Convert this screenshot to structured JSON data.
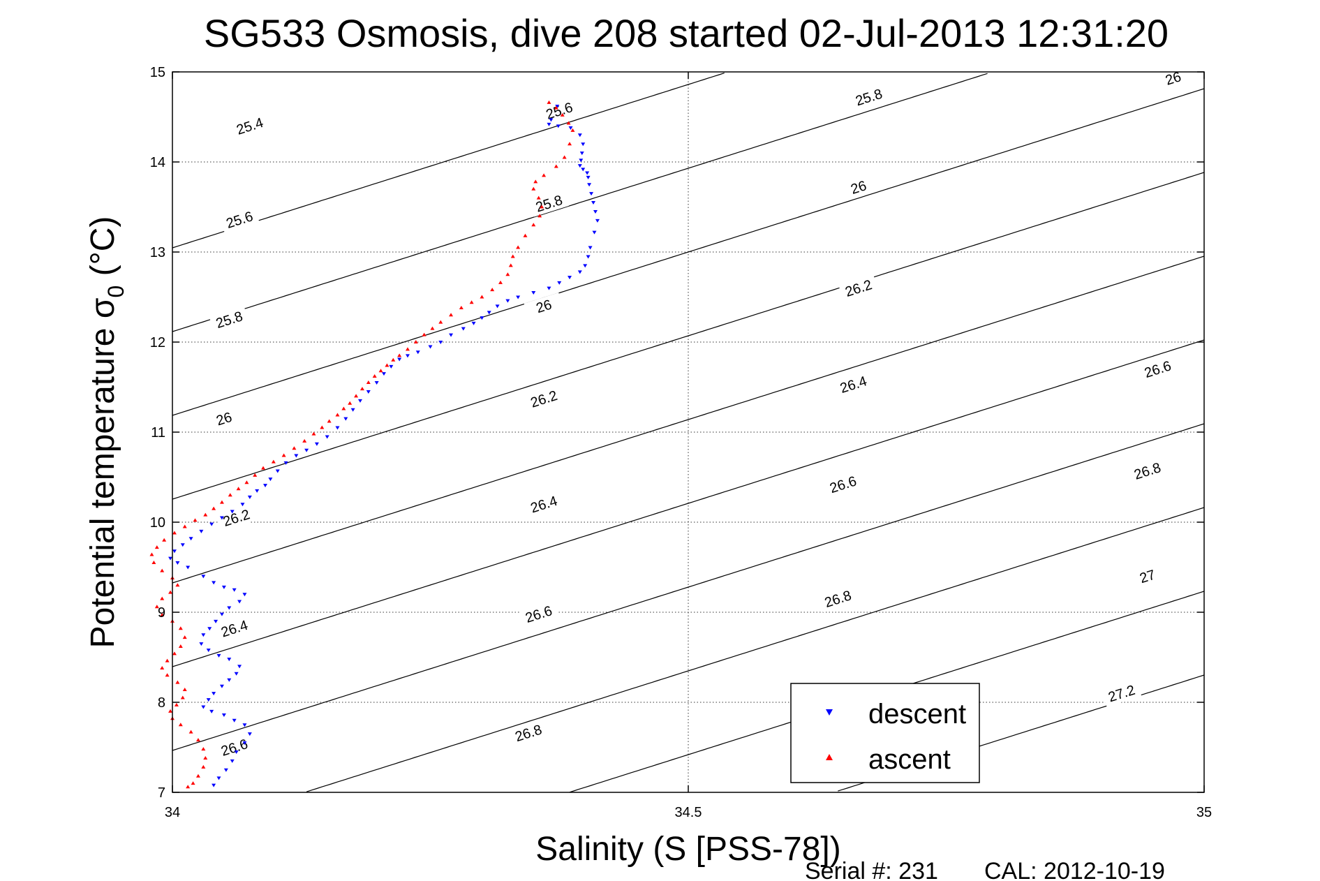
{
  "chart_data": {
    "type": "scatter",
    "title": "SG533 Osmosis, dive 208 started 02-Jul-2013 12:31:20",
    "xlabel": "Salinity (S [PSS-78])",
    "ylabel_main": "Potential temperature σ",
    "ylabel_sub": "0",
    "ylabel_unit": " (°C)",
    "xlim": [
      34,
      35
    ],
    "ylim": [
      7,
      15
    ],
    "xticks": [
      34,
      34.5,
      35
    ],
    "xtick_labels": [
      "34",
      "34.5",
      "35"
    ],
    "yticks": [
      7,
      8,
      9,
      10,
      11,
      12,
      13,
      14,
      15
    ],
    "ytick_labels": [
      "7",
      "8",
      "9",
      "10",
      "11",
      "12",
      "13",
      "14",
      "15"
    ],
    "grid": true,
    "legend_position": "bottom-right",
    "density_contours": [
      25.4,
      25.6,
      25.8,
      26.0,
      26.2,
      26.4,
      26.6,
      26.8,
      27.0,
      27.2
    ],
    "contour_labels": [
      {
        "text": "25.4",
        "s": 34.075,
        "t": 14.4
      },
      {
        "text": "25.6",
        "s": 34.065,
        "t": 13.36
      },
      {
        "text": "25.8",
        "s": 34.055,
        "t": 12.25
      },
      {
        "text": "26",
        "s": 34.05,
        "t": 11.15
      },
      {
        "text": "26.2",
        "s": 34.062,
        "t": 10.05
      },
      {
        "text": "26.4",
        "s": 34.06,
        "t": 8.82
      },
      {
        "text": "26.6",
        "s": 34.06,
        "t": 7.5
      },
      {
        "text": "25.6",
        "s": 34.375,
        "t": 14.57
      },
      {
        "text": "25.8",
        "s": 34.365,
        "t": 13.54
      },
      {
        "text": "26",
        "s": 34.36,
        "t": 12.4
      },
      {
        "text": "26.2",
        "s": 34.36,
        "t": 11.37
      },
      {
        "text": "26.4",
        "s": 34.36,
        "t": 10.2
      },
      {
        "text": "26.6",
        "s": 34.355,
        "t": 8.98
      },
      {
        "text": "26.8",
        "s": 34.345,
        "t": 7.66
      },
      {
        "text": "25.8",
        "s": 34.675,
        "t": 14.72
      },
      {
        "text": "26",
        "s": 34.665,
        "t": 13.72
      },
      {
        "text": "26.2",
        "s": 34.665,
        "t": 12.6
      },
      {
        "text": "26.4",
        "s": 34.66,
        "t": 11.53
      },
      {
        "text": "26.6",
        "s": 34.65,
        "t": 10.42
      },
      {
        "text": "26.8",
        "s": 34.645,
        "t": 9.15
      },
      {
        "text": "26",
        "s": 34.97,
        "t": 14.93
      },
      {
        "text": "26.6",
        "s": 34.955,
        "t": 11.7
      },
      {
        "text": "26.8",
        "s": 34.945,
        "t": 10.57
      },
      {
        "text": "27",
        "s": 34.945,
        "t": 9.4
      },
      {
        "text": "27.2",
        "s": 34.92,
        "t": 8.1
      }
    ],
    "series": [
      {
        "name": "descent",
        "color": "#0000ff",
        "marker": "triangle-down",
        "points": [
          [
            34.373,
            14.62
          ],
          [
            34.367,
            14.47
          ],
          [
            34.365,
            14.42
          ],
          [
            34.374,
            14.4
          ],
          [
            34.386,
            14.38
          ],
          [
            34.395,
            14.3
          ],
          [
            34.398,
            14.2
          ],
          [
            34.397,
            14.1
          ],
          [
            34.396,
            14.02
          ],
          [
            34.395,
            13.96
          ],
          [
            34.398,
            13.92
          ],
          [
            34.402,
            13.88
          ],
          [
            34.403,
            13.83
          ],
          [
            34.404,
            13.75
          ],
          [
            34.406,
            13.65
          ],
          [
            34.408,
            13.55
          ],
          [
            34.41,
            13.45
          ],
          [
            34.412,
            13.35
          ],
          [
            34.409,
            13.22
          ],
          [
            34.405,
            13.05
          ],
          [
            34.403,
            12.95
          ],
          [
            34.4,
            12.85
          ],
          [
            34.395,
            12.78
          ],
          [
            34.385,
            12.72
          ],
          [
            34.375,
            12.66
          ],
          [
            34.365,
            12.6
          ],
          [
            34.35,
            12.55
          ],
          [
            34.335,
            12.5
          ],
          [
            34.325,
            12.46
          ],
          [
            34.315,
            12.4
          ],
          [
            34.307,
            12.33
          ],
          [
            34.3,
            12.27
          ],
          [
            34.292,
            12.21
          ],
          [
            34.282,
            12.15
          ],
          [
            34.27,
            12.08
          ],
          [
            34.26,
            12.0
          ],
          [
            34.25,
            11.95
          ],
          [
            34.238,
            11.89
          ],
          [
            34.228,
            11.85
          ],
          [
            34.22,
            11.81
          ],
          [
            34.212,
            11.73
          ],
          [
            34.205,
            11.65
          ],
          [
            34.198,
            11.55
          ],
          [
            34.19,
            11.45
          ],
          [
            34.182,
            11.35
          ],
          [
            34.175,
            11.25
          ],
          [
            34.168,
            11.15
          ],
          [
            34.16,
            11.05
          ],
          [
            34.15,
            10.95
          ],
          [
            34.14,
            10.87
          ],
          [
            34.13,
            10.8
          ],
          [
            34.12,
            10.74
          ],
          [
            34.11,
            10.66
          ],
          [
            34.102,
            10.57
          ],
          [
            34.095,
            10.48
          ],
          [
            34.09,
            10.41
          ],
          [
            34.082,
            10.35
          ],
          [
            34.075,
            10.28
          ],
          [
            34.068,
            10.2
          ],
          [
            34.058,
            10.12
          ],
          [
            34.048,
            10.05
          ],
          [
            34.038,
            9.98
          ],
          [
            34.028,
            9.9
          ],
          [
            34.018,
            9.82
          ],
          [
            34.01,
            9.75
          ],
          [
            34.002,
            9.68
          ],
          [
            33.998,
            9.6
          ],
          [
            34.005,
            9.55
          ],
          [
            34.015,
            9.5
          ],
          [
            34.03,
            9.4
          ],
          [
            34.04,
            9.33
          ],
          [
            34.05,
            9.28
          ],
          [
            34.06,
            9.25
          ],
          [
            34.07,
            9.2
          ],
          [
            34.065,
            9.12
          ],
          [
            34.055,
            9.05
          ],
          [
            34.048,
            8.98
          ],
          [
            34.042,
            8.9
          ],
          [
            34.036,
            8.82
          ],
          [
            34.03,
            8.75
          ],
          [
            34.028,
            8.65
          ],
          [
            34.035,
            8.58
          ],
          [
            34.045,
            8.52
          ],
          [
            34.055,
            8.48
          ],
          [
            34.065,
            8.4
          ],
          [
            34.062,
            8.32
          ],
          [
            34.055,
            8.25
          ],
          [
            34.048,
            8.18
          ],
          [
            34.04,
            8.1
          ],
          [
            34.035,
            8.03
          ],
          [
            34.03,
            7.95
          ],
          [
            34.038,
            7.9
          ],
          [
            34.05,
            7.86
          ],
          [
            34.06,
            7.8
          ],
          [
            34.07,
            7.75
          ],
          [
            34.075,
            7.65
          ],
          [
            34.07,
            7.55
          ],
          [
            34.062,
            7.45
          ],
          [
            34.058,
            7.35
          ],
          [
            34.052,
            7.25
          ],
          [
            34.045,
            7.16
          ],
          [
            34.04,
            7.08
          ]
        ]
      },
      {
        "name": "ascent",
        "color": "#ff0000",
        "marker": "triangle-up",
        "points": [
          [
            34.365,
            14.66
          ],
          [
            34.372,
            14.6
          ],
          [
            34.378,
            14.52
          ],
          [
            34.384,
            14.43
          ],
          [
            34.388,
            14.35
          ],
          [
            34.385,
            14.2
          ],
          [
            34.38,
            14.05
          ],
          [
            34.372,
            13.95
          ],
          [
            34.36,
            13.85
          ],
          [
            34.352,
            13.78
          ],
          [
            34.35,
            13.7
          ],
          [
            34.355,
            13.6
          ],
          [
            34.358,
            13.5
          ],
          [
            34.356,
            13.4
          ],
          [
            34.35,
            13.3
          ],
          [
            34.342,
            13.18
          ],
          [
            34.335,
            13.05
          ],
          [
            34.33,
            12.95
          ],
          [
            34.328,
            12.85
          ],
          [
            34.325,
            12.75
          ],
          [
            34.318,
            12.66
          ],
          [
            34.31,
            12.58
          ],
          [
            34.3,
            12.5
          ],
          [
            34.29,
            12.44
          ],
          [
            34.28,
            12.38
          ],
          [
            34.27,
            12.3
          ],
          [
            34.26,
            12.22
          ],
          [
            34.252,
            12.15
          ],
          [
            34.244,
            12.08
          ],
          [
            34.236,
            12.0
          ],
          [
            34.228,
            11.92
          ],
          [
            34.22,
            11.85
          ],
          [
            34.214,
            11.8
          ],
          [
            34.208,
            11.74
          ],
          [
            34.202,
            11.68
          ],
          [
            34.196,
            11.62
          ],
          [
            34.19,
            11.55
          ],
          [
            34.184,
            11.48
          ],
          [
            34.178,
            11.4
          ],
          [
            34.172,
            11.32
          ],
          [
            34.166,
            11.26
          ],
          [
            34.16,
            11.19
          ],
          [
            34.152,
            11.12
          ],
          [
            34.145,
            11.05
          ],
          [
            34.137,
            10.98
          ],
          [
            34.128,
            10.9
          ],
          [
            34.118,
            10.82
          ],
          [
            34.108,
            10.74
          ],
          [
            34.098,
            10.67
          ],
          [
            34.088,
            10.6
          ],
          [
            34.08,
            10.52
          ],
          [
            34.072,
            10.44
          ],
          [
            34.064,
            10.37
          ],
          [
            34.056,
            10.3
          ],
          [
            34.048,
            10.22
          ],
          [
            34.04,
            10.15
          ],
          [
            34.032,
            10.08
          ],
          [
            34.022,
            10.02
          ],
          [
            34.012,
            9.95
          ],
          [
            34.002,
            9.88
          ],
          [
            33.992,
            9.8
          ],
          [
            33.985,
            9.72
          ],
          [
            33.98,
            9.64
          ],
          [
            33.982,
            9.55
          ],
          [
            33.99,
            9.46
          ],
          [
            34.0,
            9.38
          ],
          [
            34.005,
            9.3
          ],
          [
            33.998,
            9.22
          ],
          [
            33.99,
            9.15
          ],
          [
            33.985,
            9.06
          ],
          [
            33.99,
            8.97
          ],
          [
            34.0,
            8.9
          ],
          [
            34.008,
            8.82
          ],
          [
            34.012,
            8.72
          ],
          [
            34.008,
            8.62
          ],
          [
            34.002,
            8.54
          ],
          [
            33.995,
            8.46
          ],
          [
            33.99,
            8.38
          ],
          [
            33.995,
            8.3
          ],
          [
            34.005,
            8.22
          ],
          [
            34.012,
            8.14
          ],
          [
            34.01,
            8.05
          ],
          [
            34.004,
            7.97
          ],
          [
            33.998,
            7.9
          ],
          [
            34.0,
            7.82
          ],
          [
            34.008,
            7.75
          ],
          [
            34.018,
            7.67
          ],
          [
            34.025,
            7.58
          ],
          [
            34.03,
            7.48
          ],
          [
            34.032,
            7.38
          ],
          [
            34.03,
            7.28
          ],
          [
            34.025,
            7.18
          ],
          [
            34.02,
            7.1
          ],
          [
            34.015,
            7.06
          ]
        ]
      }
    ]
  },
  "footer": {
    "serial": "Serial #: 231",
    "cal": "CAL: 2012-10-19"
  }
}
